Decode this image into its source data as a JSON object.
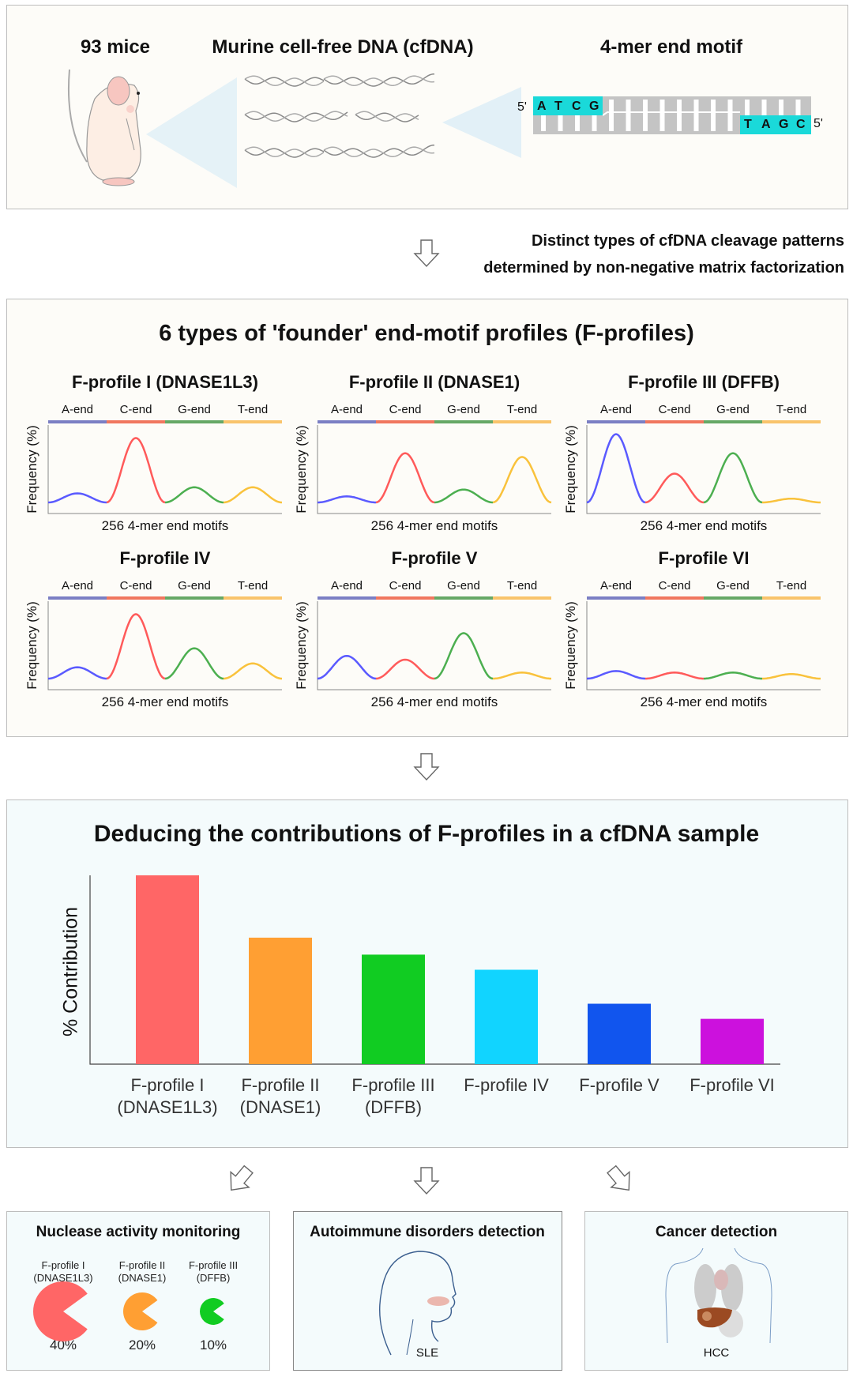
{
  "top": {
    "mice_label": "93 mice",
    "cfdna_label": "Murine cell-free DNA (cfDNA)",
    "motif_label": "4-mer end motif",
    "strand_top_end": "5'",
    "strand_bottom_end": "5'",
    "top_motif": [
      "A",
      "T",
      "C",
      "G"
    ],
    "bottom_motif": [
      "T",
      "A",
      "G",
      "C"
    ],
    "motif_color": "#1ad9d9"
  },
  "step1": {
    "line1": "Distinct types of cfDNA cleavage patterns",
    "line2": "determined by non-negative matrix factorization"
  },
  "profiles_box": {
    "title": "6 types of 'founder' end-motif profiles (F-profiles)",
    "segments": [
      "A-end",
      "C-end",
      "G-end",
      "T-end"
    ],
    "segment_colors": [
      "#7b7fc4",
      "#f0775f",
      "#66a866",
      "#f9c46b"
    ],
    "curve_colors": [
      "#5a5aff",
      "#ff5a5a",
      "#4caf50",
      "#f9c23c"
    ],
    "ylabel": "Frequency (%)",
    "xlabel": "256 4-mer end motifs",
    "profiles": [
      {
        "title": "F-profile I (DNASE1L3)",
        "peaks": [
          0.12,
          0.85,
          0.2,
          0.2
        ]
      },
      {
        "title": "F-profile II (DNASE1)",
        "peaks": [
          0.08,
          0.65,
          0.17,
          0.6
        ]
      },
      {
        "title": "F-profile III (DFFB)",
        "peaks": [
          0.9,
          0.38,
          0.65,
          0.05
        ]
      },
      {
        "title": "F-profile IV",
        "peaks": [
          0.15,
          0.85,
          0.4,
          0.2
        ]
      },
      {
        "title": "F-profile V",
        "peaks": [
          0.3,
          0.25,
          0.6,
          0.08
        ]
      },
      {
        "title": "F-profile VI",
        "peaks": [
          0.1,
          0.08,
          0.08,
          0.06
        ]
      }
    ]
  },
  "chart_data": {
    "type": "bar",
    "title": "Deducing the contributions of F-profiles in a cfDNA sample",
    "ylabel": "% Contribution",
    "xlabel": "",
    "categories": [
      [
        "F-profile I",
        "(DNASE1L3)"
      ],
      [
        "F-profile II",
        "(DNASE1)"
      ],
      [
        "F-profile III",
        "(DFFB)"
      ],
      [
        "F-profile IV"
      ],
      [
        "F-profile V"
      ],
      [
        "F-profile VI"
      ]
    ],
    "values": [
      100,
      67,
      58,
      50,
      32,
      24
    ],
    "colors": [
      "#ff6666",
      "#ff9f33",
      "#11cc22",
      "#11d4ff",
      "#1155ee",
      "#cc11dd"
    ],
    "ylim": [
      0,
      100
    ],
    "grid": false
  },
  "applications": {
    "nuclease": {
      "title": "Nuclease activity monitoring",
      "items": [
        {
          "label1": "F-profile I",
          "label2": "(DNASE1L3)",
          "value": "40%",
          "fraction": 0.4,
          "color": "#ff6666"
        },
        {
          "label1": "F-profile II",
          "label2": "(DNASE1)",
          "value": "20%",
          "fraction": 0.2,
          "color": "#ff9f33"
        },
        {
          "label1": "F-profile III",
          "label2": "(DFFB)",
          "value": "10%",
          "fraction": 0.1,
          "color": "#11cc22"
        }
      ]
    },
    "autoimmune": {
      "title": "Autoimmune disorders detection",
      "caption": "SLE"
    },
    "cancer": {
      "title": "Cancer detection",
      "caption": "HCC"
    }
  }
}
